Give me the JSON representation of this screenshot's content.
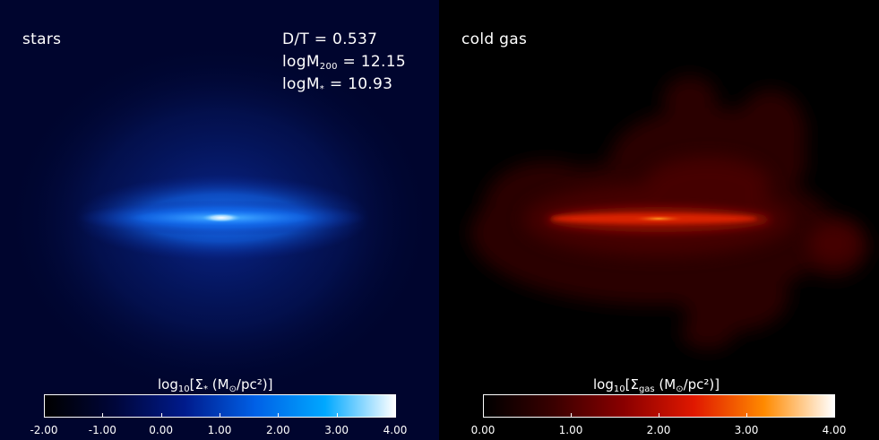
{
  "stars_panel": {
    "label": "stars",
    "stats": {
      "dt_label": "D/T = 0.537",
      "m200_prefix": "logM",
      "m200_sub": "200",
      "m200_value": "= 12.15",
      "mstar_prefix": "logM",
      "mstar_sub": "*",
      "mstar_value": "= 10.93"
    },
    "colorbar": {
      "title_prefix": "log",
      "title_base": "10",
      "title_main": "[Σ",
      "title_sub": "*",
      "title_unit": " (M",
      "title_sun": "⊙",
      "title_end": "/pc²)]",
      "ticks": [
        "-2.00",
        "-1.00",
        "0.00",
        "1.00",
        "2.00",
        "3.00",
        "4.00"
      ],
      "range": [
        -2.0,
        4.0
      ],
      "colors": [
        "#000000",
        "#00063a",
        "#001b8c",
        "#0060e6",
        "#00a8ff",
        "#ffffff"
      ]
    }
  },
  "gas_panel": {
    "label": "cold gas",
    "colorbar": {
      "title_prefix": "log",
      "title_base": "10",
      "title_main": "[Σ",
      "title_sub": "gas",
      "title_unit": " (M",
      "title_sun": "⊙",
      "title_end": "/pc²)]",
      "ticks": [
        "0.00",
        "1.00",
        "2.00",
        "3.00",
        "4.00"
      ],
      "range": [
        0.0,
        4.0
      ],
      "colors": [
        "#000000",
        "#3a0000",
        "#8a0000",
        "#e01800",
        "#ff8a00",
        "#ffffff"
      ]
    }
  }
}
